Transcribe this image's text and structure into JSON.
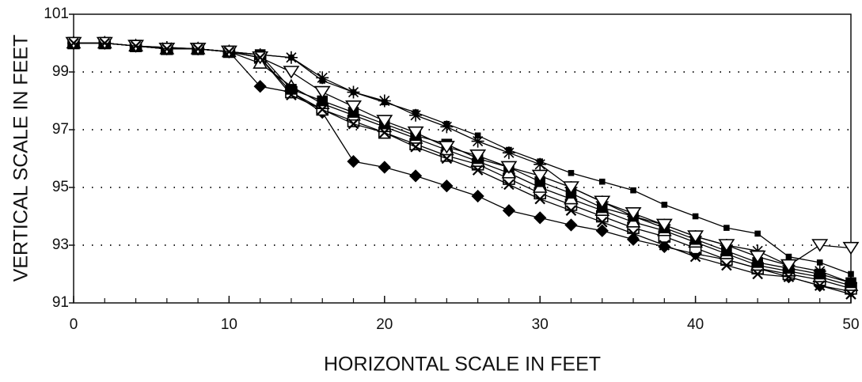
{
  "chart_data": {
    "type": "line",
    "xlabel": "HORIZONTAL SCALE IN FEET",
    "ylabel": "VERTICAL SCALE IN FEET",
    "x": [
      0,
      2,
      4,
      6,
      8,
      10,
      12,
      14,
      16,
      18,
      20,
      22,
      24,
      26,
      28,
      30,
      32,
      34,
      36,
      38,
      40,
      42,
      44,
      46,
      48,
      50
    ],
    "series": [
      {
        "color": "#000000",
        "marker": "diamond",
        "values": [
          100,
          100,
          99.9,
          99.8,
          99.8,
          99.7,
          98.5,
          98.3,
          97.6,
          95.9,
          95.7,
          95.4,
          95.05,
          94.7,
          94.2,
          93.95,
          93.7,
          93.5,
          93.2,
          92.95,
          92.7,
          92.5,
          92.2,
          91.9,
          91.6,
          91.4
        ]
      },
      {
        "color": "#000000",
        "marker": "small-square",
        "values": [
          100,
          100,
          99.9,
          99.85,
          99.8,
          99.7,
          99.6,
          99.5,
          98.7,
          98.3,
          97.95,
          97.6,
          97.2,
          96.8,
          96.3,
          95.9,
          95.5,
          95.2,
          94.9,
          94.4,
          94.0,
          93.6,
          93.4,
          92.6,
          92.4,
          92.0
        ]
      },
      {
        "color": "#000000",
        "marker": "asterisk",
        "values": [
          100,
          100,
          99.9,
          99.85,
          99.8,
          99.7,
          99.6,
          99.5,
          98.8,
          98.3,
          98.0,
          97.5,
          97.1,
          96.6,
          96.2,
          95.8,
          95.0,
          94.5,
          94.0,
          93.7,
          93.3,
          93.0,
          92.8,
          92.3,
          92.1,
          91.7
        ]
      },
      {
        "color": "#000000",
        "marker": "open-square",
        "values": [
          100,
          100,
          99.9,
          99.8,
          99.8,
          99.7,
          99.5,
          98.3,
          97.7,
          97.3,
          96.9,
          96.5,
          96.1,
          95.8,
          95.3,
          94.8,
          94.4,
          94.0,
          93.6,
          93.3,
          92.9,
          92.5,
          92.2,
          92.0,
          91.8,
          91.5
        ]
      },
      {
        "color": "#000000",
        "marker": "triangle",
        "values": [
          100,
          100,
          99.9,
          99.8,
          99.8,
          99.7,
          99.3,
          98.5,
          97.9,
          97.5,
          97.1,
          96.7,
          96.3,
          95.9,
          95.5,
          95.0,
          94.6,
          94.2,
          93.8,
          93.5,
          93.1,
          92.7,
          92.3,
          92.1,
          91.9,
          91.6
        ]
      },
      {
        "color": "#000000",
        "marker": "filled-square",
        "values": [
          100,
          100,
          99.9,
          99.8,
          99.8,
          99.7,
          99.6,
          98.4,
          98.0,
          97.6,
          97.2,
          96.8,
          96.5,
          96.0,
          95.7,
          95.2,
          94.8,
          94.3,
          94.0,
          93.6,
          93.2,
          92.8,
          92.4,
          92.2,
          92.0,
          91.7
        ]
      },
      {
        "color": "#000000",
        "marker": "inverted-triangle",
        "values": [
          100,
          100,
          99.9,
          99.8,
          99.8,
          99.7,
          99.5,
          99.0,
          98.3,
          97.8,
          97.3,
          96.9,
          96.4,
          96.1,
          95.7,
          95.4,
          95.0,
          94.5,
          94.1,
          93.7,
          93.3,
          93.0,
          92.6,
          92.3,
          93.0,
          92.9
        ]
      },
      {
        "color": "#000000",
        "marker": "cross",
        "values": [
          100,
          100,
          99.9,
          99.8,
          99.8,
          99.7,
          99.5,
          98.2,
          97.7,
          97.2,
          96.9,
          96.4,
          96.0,
          95.6,
          95.1,
          94.6,
          94.2,
          93.8,
          93.4,
          93.0,
          92.6,
          92.3,
          92.0,
          91.9,
          91.6,
          91.3
        ]
      }
    ],
    "xlim": [
      0,
      50
    ],
    "xticks": [
      0,
      10,
      20,
      30,
      40,
      50
    ],
    "ylim": [
      91,
      101
    ],
    "yticks": [
      91,
      93,
      95,
      97,
      99,
      101
    ],
    "grid": true
  }
}
